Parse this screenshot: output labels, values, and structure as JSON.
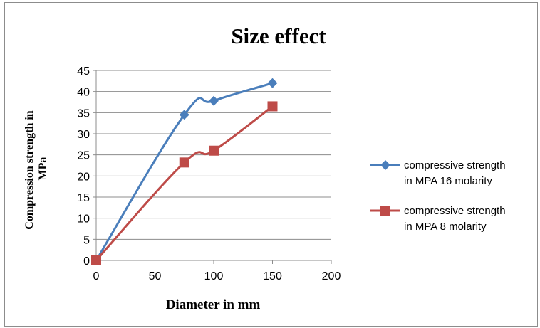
{
  "chart_data": {
    "type": "line",
    "title": "Size effect",
    "xlabel": "Diameter in mm",
    "ylabel_lines": [
      "Compression strength in",
      "MPa"
    ],
    "xlim": [
      0,
      200
    ],
    "ylim": [
      0,
      45
    ],
    "x_ticks": [
      0,
      50,
      100,
      150,
      200
    ],
    "y_ticks": [
      0,
      5,
      10,
      15,
      20,
      25,
      30,
      35,
      40,
      45
    ],
    "grid": "horizontal",
    "smoothed": true,
    "legend_position": "right",
    "series": [
      {
        "name_lines": [
          "compressive strength",
          "in MPA 16 molarity"
        ],
        "color": "#4a7ebb",
        "marker": "diamond",
        "x": [
          0,
          75,
          100,
          150
        ],
        "y": [
          0,
          34.5,
          37.8,
          42
        ]
      },
      {
        "name_lines": [
          "compressive strength",
          "in MPA 8 molarity"
        ],
        "color": "#be4b48",
        "marker": "square",
        "x": [
          0,
          75,
          100,
          150
        ],
        "y": [
          0,
          23.2,
          26,
          36.5
        ]
      }
    ]
  }
}
